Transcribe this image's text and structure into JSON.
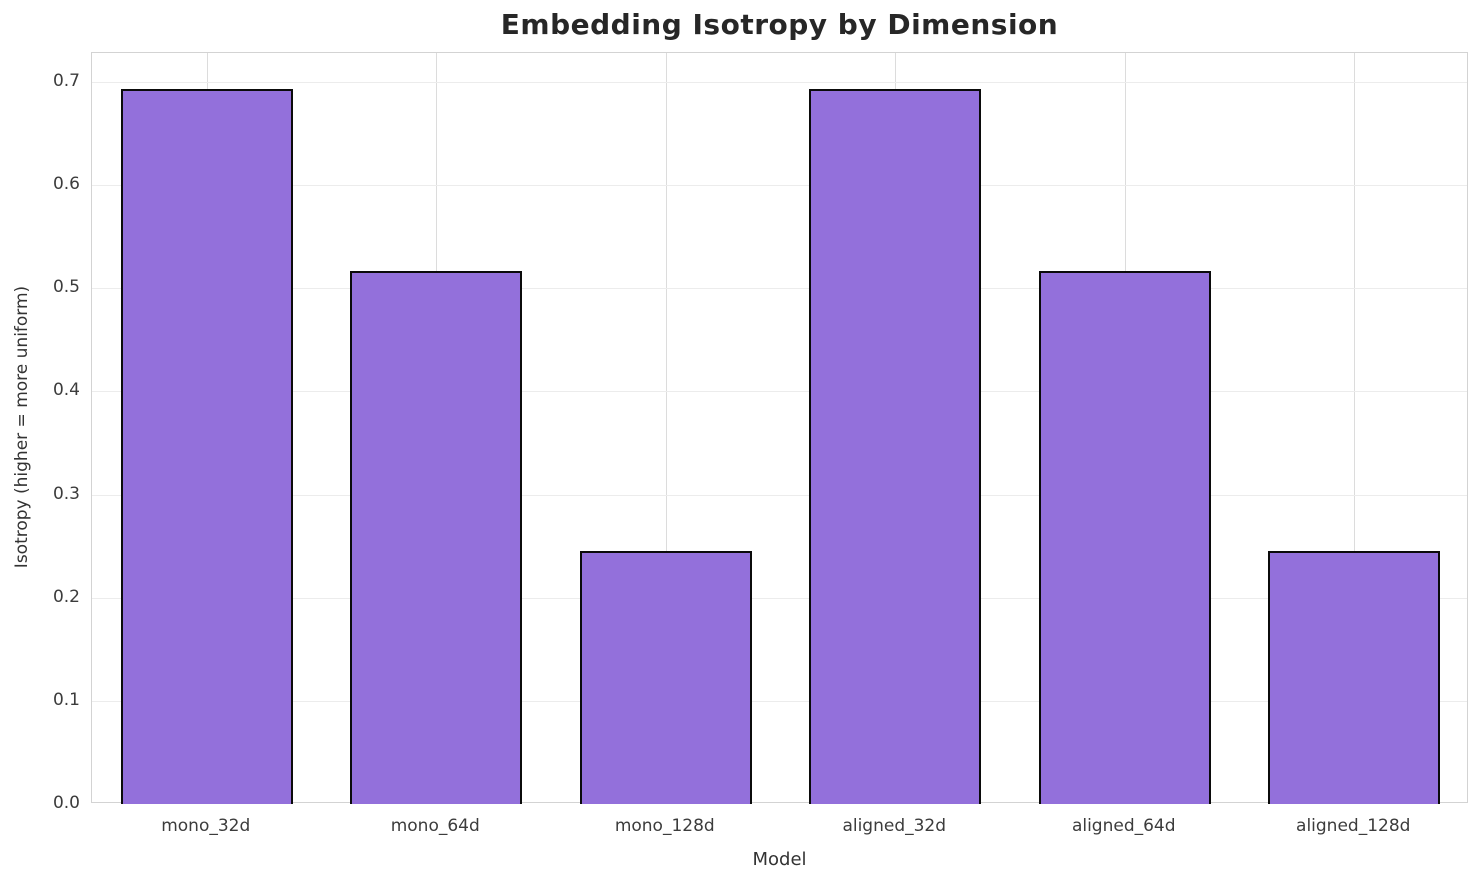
{
  "chart_data": {
    "type": "bar",
    "title": "Embedding Isotropy by Dimension",
    "xlabel": "Model",
    "ylabel": "Isotropy (higher = more uniform)",
    "categories": [
      "mono_32d",
      "mono_64d",
      "mono_128d",
      "aligned_32d",
      "aligned_64d",
      "aligned_128d"
    ],
    "values": [
      0.693,
      0.517,
      0.245,
      0.693,
      0.517,
      0.245
    ],
    "ylim": [
      0,
      0.728
    ],
    "yticks": [
      0.0,
      0.1,
      0.2,
      0.3,
      0.4,
      0.5,
      0.6,
      0.7
    ],
    "ytick_labels": [
      "0.0",
      "0.1",
      "0.2",
      "0.3",
      "0.4",
      "0.5",
      "0.6",
      "0.7"
    ],
    "grid": true,
    "legend": null,
    "bar_color": "#9370DB",
    "bar_edge_color": "#0b0b0b",
    "grid_color": "#ececec",
    "spine_color": "#d3d3d3",
    "title_color": "#272727",
    "tick_color": "#3c3c3c"
  }
}
